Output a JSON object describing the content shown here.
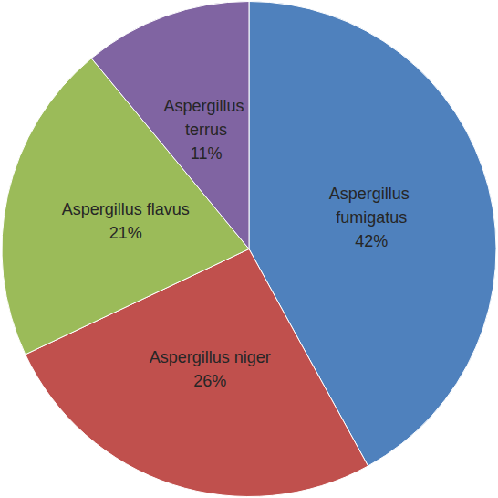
{
  "chart_data": {
    "type": "pie",
    "categories": [
      "Aspergillus fumigatus",
      "Aspergillus niger",
      "Aspergillus flavus",
      "Aspergillus terrus"
    ],
    "values": [
      42,
      26,
      21,
      11
    ],
    "value_labels": [
      "42%",
      "26%",
      "21%",
      "11%"
    ],
    "colors": [
      "#4f81bd",
      "#c0504d",
      "#9bbb59",
      "#8064a2"
    ],
    "data_labels": true
  }
}
